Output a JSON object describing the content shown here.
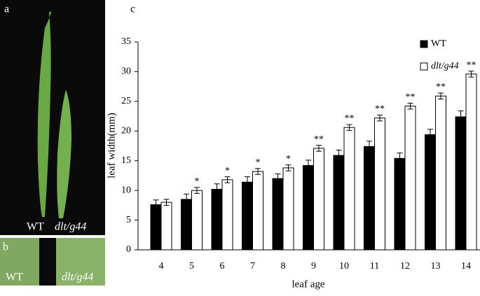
{
  "panels": {
    "a": {
      "label": "a",
      "texts": [
        "WT",
        "dlt/g44"
      ]
    },
    "b": {
      "label": "b",
      "texts": [
        "WT",
        "dlt/g44"
      ]
    },
    "c": {
      "label": "c"
    }
  },
  "chart_data": {
    "type": "bar",
    "x_label": "leaf age",
    "y_label": "leaf width(mm)",
    "categories": [
      "4",
      "5",
      "6",
      "7",
      "8",
      "9",
      "10",
      "11",
      "12",
      "13",
      "14"
    ],
    "series": [
      {
        "name": "WT",
        "color": "#000000",
        "values": [
          7.6,
          8.5,
          10.2,
          11.4,
          12.0,
          14.2,
          15.9,
          17.4,
          15.4,
          19.4,
          22.4
        ],
        "errors": [
          0.8,
          0.9,
          0.9,
          0.9,
          0.8,
          0.9,
          0.9,
          0.9,
          0.9,
          0.9,
          1.0
        ]
      },
      {
        "name": "dlt/g44",
        "color": "#ffffff",
        "values": [
          8.0,
          10.0,
          11.8,
          13.2,
          13.8,
          17.1,
          20.6,
          22.2,
          24.2,
          25.9,
          29.6
        ],
        "errors": [
          0.5,
          0.5,
          0.5,
          0.5,
          0.5,
          0.5,
          0.5,
          0.5,
          0.5,
          0.5,
          0.5
        ],
        "annotations": [
          null,
          "*",
          "*",
          "*",
          "*",
          "**",
          "**",
          "**",
          "**",
          "**",
          "**"
        ]
      }
    ],
    "ylim": [
      0,
      35
    ],
    "yticks": [
      0,
      5,
      10,
      15,
      20,
      25,
      30,
      35
    ],
    "grid": false,
    "legend": "upper right"
  }
}
